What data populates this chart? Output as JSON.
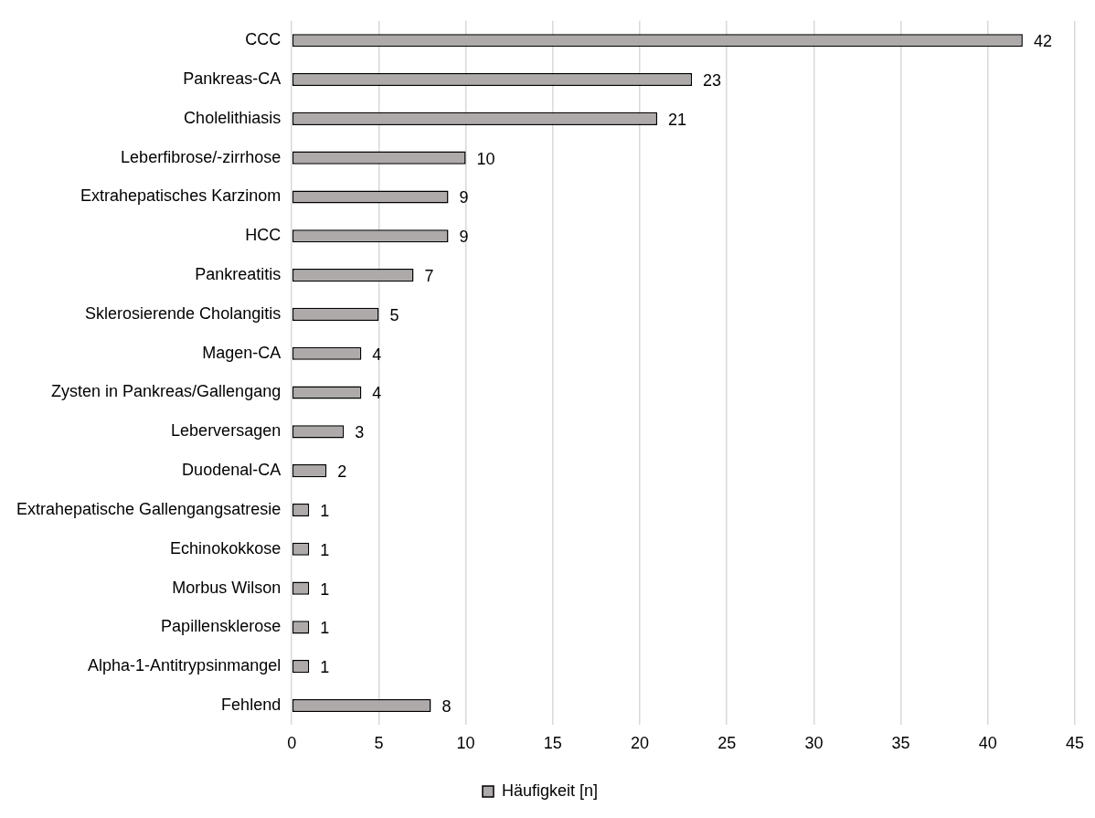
{
  "chart_data": {
    "type": "bar",
    "orientation": "horizontal",
    "categories": [
      "CCC",
      "Pankreas-CA",
      "Cholelithiasis",
      "Leberfibrose/-zirrhose",
      "Extrahepatisches Karzinom",
      "HCC",
      "Pankreatitis",
      "Sklerosierende Cholangitis",
      "Magen-CA",
      "Zysten in Pankreas/Gallengang",
      "Leberversagen",
      "Duodenal-CA",
      "Extrahepatische Gallengangsatresie",
      "Echinokokkose",
      "Morbus Wilson",
      "Papillensklerose",
      "Alpha-1-Antitrypsinmangel",
      "Fehlend"
    ],
    "series": [
      {
        "name": "Häufigkeit [n]",
        "color": "#aeaaaa",
        "values": [
          42,
          23,
          21,
          10,
          9,
          9,
          7,
          5,
          4,
          4,
          3,
          2,
          1,
          1,
          1,
          1,
          1,
          8
        ]
      }
    ],
    "xlim": [
      0,
      45
    ],
    "xticks": [
      0,
      5,
      10,
      15,
      20,
      25,
      30,
      35,
      40,
      45
    ],
    "grid": "x",
    "legend": "bottom",
    "data_labels": true
  }
}
